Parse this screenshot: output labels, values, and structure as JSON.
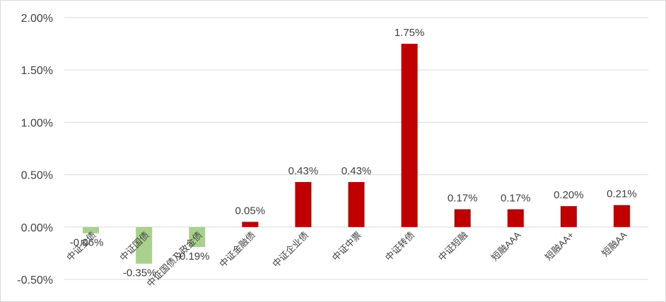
{
  "chart_data": {
    "type": "bar",
    "categories": [
      "中证全债",
      "中证国债",
      "中证国债及政金债",
      "中证金融债",
      "中证企业债",
      "中证中票",
      "中证转债",
      "中证短融",
      "短融AAA",
      "短融AA+",
      "短融AA"
    ],
    "values": [
      -0.06,
      -0.35,
      -0.19,
      0.05,
      0.43,
      0.43,
      1.75,
      0.17,
      0.17,
      0.2,
      0.21
    ],
    "data_labels": [
      "-0.06%",
      "-0.35%",
      "-0.19%",
      "0.05%",
      "0.43%",
      "0.43%",
      "1.75%",
      "0.17%",
      "0.17%",
      "0.20%",
      "0.21%"
    ],
    "y_ticks": [
      2.0,
      1.5,
      1.0,
      0.5,
      0.0,
      -0.5
    ],
    "y_tick_labels": [
      "2.00%",
      "1.50%",
      "1.00%",
      "0.50%",
      "0.00%",
      "-0.50%"
    ],
    "ylim": [
      -0.5,
      2.0
    ],
    "grid": true,
    "legend": "none",
    "colors": {
      "positive": "#C00000",
      "negative": "#A9D18E"
    }
  }
}
